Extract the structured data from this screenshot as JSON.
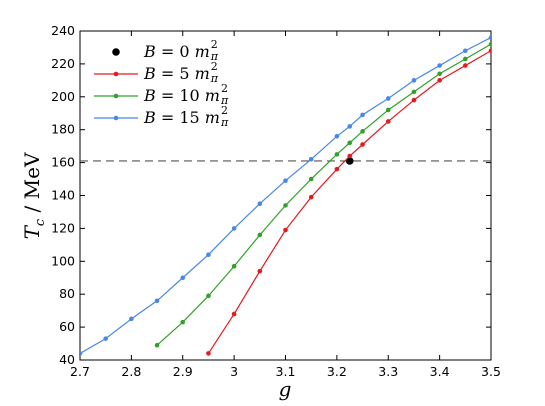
{
  "chart_data": {
    "type": "line",
    "xlabel": "g",
    "ylabel": "T_c / MeV",
    "xlim": [
      2.7,
      3.5
    ],
    "ylim": [
      40,
      240
    ],
    "xticks": [
      "2.7",
      "2.8",
      "2.9",
      "3",
      "3.1",
      "3.2",
      "3.3",
      "3.4",
      "3.5"
    ],
    "yticks": [
      "40",
      "60",
      "80",
      "100",
      "120",
      "140",
      "160",
      "180",
      "200",
      "220",
      "240"
    ],
    "xtick_values": [
      2.7,
      2.8,
      2.9,
      3.0,
      3.1,
      3.2,
      3.3,
      3.4,
      3.5
    ],
    "ytick_values": [
      40,
      60,
      80,
      100,
      120,
      140,
      160,
      180,
      200,
      220,
      240
    ],
    "reference_line": {
      "y": 161,
      "style": "dashed",
      "color": "#555555"
    },
    "legend_position": "top-left",
    "grid": false,
    "series": [
      {
        "name": "B = 0 m²π",
        "color": "#000000",
        "marker_only": true,
        "x": [
          3.225
        ],
        "y": [
          161
        ]
      },
      {
        "name": "B = 5 m²π",
        "color": "#e41a1c",
        "x": [
          2.95,
          3.0,
          3.05,
          3.1,
          3.15,
          3.2,
          3.225,
          3.25,
          3.3,
          3.35,
          3.4,
          3.45,
          3.5
        ],
        "y": [
          44,
          68,
          94,
          119,
          139,
          156,
          164,
          171,
          185,
          198,
          210,
          219,
          228
        ]
      },
      {
        "name": "B = 10 m²π",
        "color": "#33a02c",
        "x": [
          2.85,
          2.9,
          2.95,
          3.0,
          3.05,
          3.1,
          3.15,
          3.2,
          3.225,
          3.25,
          3.3,
          3.35,
          3.4,
          3.45,
          3.5
        ],
        "y": [
          49,
          63,
          79,
          97,
          116,
          134,
          150,
          165,
          172,
          179,
          192,
          203,
          214,
          223,
          232
        ]
      },
      {
        "name": "B = 15 m²π",
        "color": "#4a86e8",
        "x": [
          2.7,
          2.75,
          2.8,
          2.85,
          2.9,
          2.95,
          3.0,
          3.05,
          3.1,
          3.15,
          3.2,
          3.225,
          3.25,
          3.3,
          3.35,
          3.4,
          3.45,
          3.5
        ],
        "y": [
          44,
          53,
          65,
          76,
          90,
          104,
          120,
          135,
          149,
          162,
          176,
          182,
          189,
          199,
          210,
          219,
          228,
          236
        ]
      }
    ]
  }
}
